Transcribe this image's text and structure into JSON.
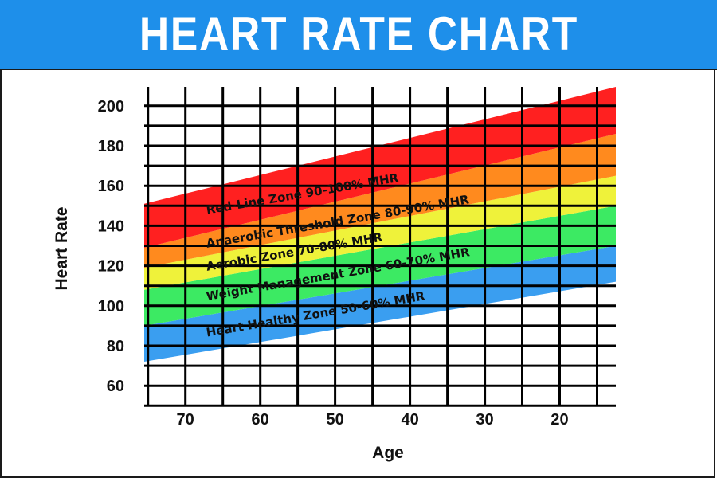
{
  "header": {
    "title": "HEART RATE CHART",
    "background": "#1e8fea"
  },
  "chart_data": {
    "type": "area",
    "title": "HEART RATE CHART",
    "xlabel": "Age",
    "ylabel": "Heart Rate",
    "x_ticks": [
      70,
      60,
      50,
      40,
      30,
      20
    ],
    "y_ticks": [
      60,
      80,
      100,
      120,
      140,
      160,
      180,
      200
    ],
    "xlim": [
      75.5,
      12.5
    ],
    "ylim": [
      50.5,
      209.5
    ],
    "x_axis_reversed": true,
    "grid": true,
    "band_boundaries": [
      {
        "name": "50% MHR",
        "points": [
          [
            75.5,
            72
          ],
          [
            12.5,
            112
          ]
        ]
      },
      {
        "name": "60% MHR",
        "points": [
          [
            75.5,
            90
          ],
          [
            12.5,
            130
          ]
        ]
      },
      {
        "name": "70% MHR",
        "points": [
          [
            75.5,
            108
          ],
          [
            12.5,
            150
          ]
        ]
      },
      {
        "name": "80% MHR",
        "points": [
          [
            75.5,
            119
          ],
          [
            12.5,
            165
          ]
        ]
      },
      {
        "name": "90% MHR",
        "points": [
          [
            75.5,
            129
          ],
          [
            12.5,
            186
          ]
        ]
      },
      {
        "name": "100% MHR",
        "points": [
          [
            75.5,
            151
          ],
          [
            12.5,
            209.5
          ]
        ]
      }
    ],
    "zones": [
      {
        "label": "Heart Healthy Zone    50-60% MHR",
        "lower": 0,
        "upper": 1,
        "color": "#3a9ef0"
      },
      {
        "label": "Weight Management Zone    60-70% MHR",
        "lower": 1,
        "upper": 2,
        "color": "#3cea63"
      },
      {
        "label": "Aerobic Zone    70-80% MHR",
        "lower": 2,
        "upper": 3,
        "color": "#eff23a"
      },
      {
        "label": "Anaerobic Threshold Zone    80-90% MHR",
        "lower": 3,
        "upper": 4,
        "color": "#ff8a1e"
      },
      {
        "label": "Red-Line Zone    90-100% MHR",
        "lower": 4,
        "upper": 5,
        "color": "#ff2020"
      }
    ],
    "zone_label_anchor_age": 67.2
  }
}
